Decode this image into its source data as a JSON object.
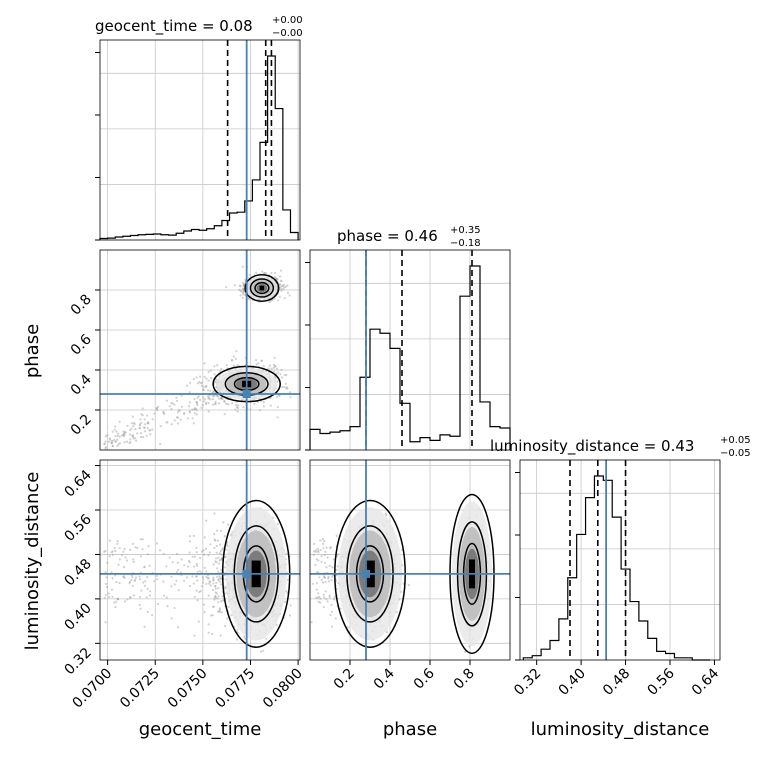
{
  "chart_data": {
    "type": "corner",
    "parameters": [
      "geocent_time",
      "phase",
      "luminosity_distance"
    ],
    "titles": {
      "geocent_time": {
        "prefix": "geocent_time = 0.08",
        "plus": "+0.00",
        "minus": "−0.00"
      },
      "phase": {
        "prefix": "phase = 0.46",
        "plus": "+0.35",
        "minus": "−0.18"
      },
      "luminosity_distance": {
        "prefix": "luminosity_distance = 0.43",
        "plus": "+0.05",
        "minus": "−0.05"
      }
    },
    "ranges": {
      "geocent_time": [
        0.0696,
        0.0801
      ],
      "phase": [
        0.0,
        1.0
      ],
      "luminosity_distance": [
        0.29,
        0.65
      ]
    },
    "ticks": {
      "geocent_time": {
        "values": [
          0.07,
          0.0725,
          0.075,
          0.0775,
          0.08
        ],
        "labels": [
          "0.0700",
          "0.0725",
          "0.0750",
          "0.0775",
          "0.0800"
        ]
      },
      "phase": {
        "values": [
          0.2,
          0.4,
          0.6,
          0.8
        ],
        "labels": [
          "0.2",
          "0.4",
          "0.6",
          "0.8"
        ]
      },
      "luminosity_distance": {
        "values": [
          0.32,
          0.4,
          0.48,
          0.56,
          0.64
        ],
        "labels": [
          "0.32",
          "0.40",
          "0.48",
          "0.56",
          "0.64"
        ]
      }
    },
    "truths": {
      "geocent_time": 0.0773,
      "phase": 0.28,
      "luminosity_distance": 0.445
    },
    "quantiles": {
      "geocent_time": [
        0.0763,
        0.0783,
        0.0786
      ],
      "phase": [
        0.28,
        0.46,
        0.81
      ],
      "luminosity_distance": [
        0.38,
        0.43,
        0.48
      ]
    },
    "histograms": {
      "geocent_time": {
        "edges": [
          0.0696,
          0.07,
          0.0704,
          0.0708,
          0.0712,
          0.0716,
          0.072,
          0.0724,
          0.0728,
          0.0732,
          0.0736,
          0.074,
          0.0744,
          0.0748,
          0.0752,
          0.0756,
          0.076,
          0.0764,
          0.0768,
          0.0772,
          0.0776,
          0.078,
          0.0784,
          0.0788,
          0.0792,
          0.0796,
          0.08
        ],
        "counts": [
          0.2,
          0.25,
          0.4,
          0.5,
          0.6,
          0.7,
          0.75,
          0.8,
          0.7,
          0.65,
          0.9,
          1.2,
          1.4,
          1.3,
          1.5,
          1.9,
          2.6,
          3.6,
          3.7,
          5.2,
          8.0,
          13.0,
          24.5,
          17.5,
          4.0,
          1.0
        ]
      },
      "phase": {
        "edges": [
          0.0,
          0.05,
          0.1,
          0.15,
          0.2,
          0.25,
          0.3,
          0.35,
          0.4,
          0.45,
          0.5,
          0.55,
          0.6,
          0.65,
          0.7,
          0.75,
          0.8,
          0.85,
          0.9,
          0.95,
          1.0
        ],
        "counts": [
          1.5,
          1.2,
          1.3,
          1.4,
          1.7,
          5.3,
          8.8,
          8.5,
          7.4,
          3.4,
          0.6,
          0.9,
          0.7,
          1.1,
          1.0,
          11.2,
          13.4,
          3.5,
          1.7,
          1.6
        ]
      },
      "luminosity_distance": {
        "edges": [
          0.296,
          0.312,
          0.328,
          0.344,
          0.36,
          0.376,
          0.392,
          0.408,
          0.424,
          0.44,
          0.456,
          0.472,
          0.488,
          0.504,
          0.52,
          0.536,
          0.552,
          0.568,
          0.584,
          0.6,
          0.616,
          0.632
        ],
        "counts": [
          0.1,
          0.2,
          0.5,
          0.9,
          1.9,
          3.8,
          5.8,
          7.5,
          8.5,
          8.3,
          6.6,
          4.2,
          2.7,
          1.8,
          1.0,
          0.4,
          0.3,
          0.1,
          0.1,
          0.0,
          0.0
        ]
      }
    },
    "grid": true,
    "colors": {
      "truth": "#4682b4",
      "hist": "#000000",
      "contour": "#000000",
      "points": "#9a9a9a"
    }
  }
}
